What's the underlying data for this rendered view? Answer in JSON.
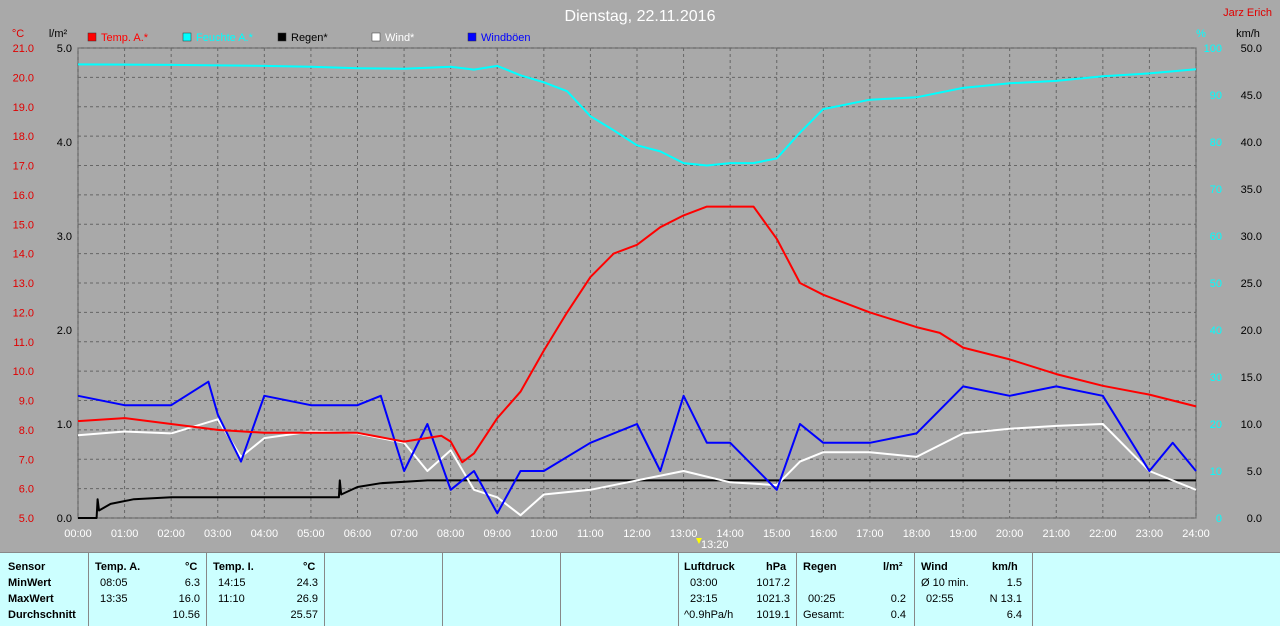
{
  "chart_data": {
    "type": "line",
    "title": "Dienstag, 22.11.2016",
    "author": "Jarz Erich",
    "x": {
      "min": 0,
      "max": 24,
      "ticks": [
        "00:00",
        "01:00",
        "02:00",
        "03:00",
        "04:00",
        "05:00",
        "06:00",
        "07:00",
        "08:00",
        "09:00",
        "10:00",
        "11:00",
        "12:00",
        "13:00",
        "14:00",
        "15:00",
        "16:00",
        "17:00",
        "18:00",
        "19:00",
        "20:00",
        "21:00",
        "22:00",
        "23:00",
        "24:00"
      ]
    },
    "axes": {
      "temp": {
        "unit": "°C",
        "min": 5,
        "max": 21,
        "ticks": [
          "21.0",
          "20.0",
          "19.0",
          "18.0",
          "17.0",
          "16.0",
          "15.0",
          "14.0",
          "13.0",
          "12.0",
          "11.0",
          "10.0",
          "9.0",
          "8.0",
          "7.0",
          "6.0",
          "5.0"
        ],
        "color": "#e00000"
      },
      "rain": {
        "unit": "l/m²",
        "min": 0,
        "max": 5,
        "ticks": [
          "5.0",
          "4.0",
          "3.0",
          "2.0",
          "1.0",
          "0.0"
        ],
        "color": "#000000"
      },
      "humidity": {
        "unit": "%",
        "min": 0,
        "max": 100,
        "ticks": [
          "100",
          "90",
          "80",
          "70",
          "60",
          "50",
          "40",
          "30",
          "20",
          "10",
          "0"
        ],
        "color": "#00ffff"
      },
      "wind": {
        "unit": "km/h",
        "min": 0,
        "max": 50,
        "ticks": [
          "50.0",
          "45.0",
          "40.0",
          "35.0",
          "30.0",
          "25.0",
          "20.0",
          "15.0",
          "10.0",
          "5.0",
          "0.0"
        ],
        "color": "#000000"
      }
    },
    "legend": [
      {
        "name": "Temp. A.*",
        "color": "#ff0000"
      },
      {
        "name": "Feuchte A.*",
        "color": "#00ffff"
      },
      {
        "name": "Regen*",
        "color": "#000000"
      },
      {
        "name": "Wind*",
        "color": "#ffffff"
      },
      {
        "name": "Windböen",
        "color": "#0000ff"
      }
    ],
    "annotation": {
      "label": "13:20",
      "x": 13.33
    },
    "series": [
      {
        "name": "Temp. A.*",
        "axis": "temp",
        "color": "#ff0000",
        "points": [
          [
            0,
            8.3
          ],
          [
            1,
            8.4
          ],
          [
            2,
            8.2
          ],
          [
            3,
            8.0
          ],
          [
            4,
            7.9
          ],
          [
            5,
            7.9
          ],
          [
            6,
            7.9
          ],
          [
            7,
            7.6
          ],
          [
            7.8,
            7.8
          ],
          [
            8,
            7.6
          ],
          [
            8.25,
            6.9
          ],
          [
            8.5,
            7.2
          ],
          [
            9,
            8.4
          ],
          [
            9.5,
            9.3
          ],
          [
            10,
            10.7
          ],
          [
            10.5,
            12.0
          ],
          [
            11,
            13.2
          ],
          [
            11.5,
            14.0
          ],
          [
            12,
            14.3
          ],
          [
            12.5,
            14.9
          ],
          [
            13,
            15.3
          ],
          [
            13.5,
            15.6
          ],
          [
            14,
            15.6
          ],
          [
            14.5,
            15.6
          ],
          [
            15,
            14.5
          ],
          [
            15.5,
            13.0
          ],
          [
            16,
            12.6
          ],
          [
            17,
            12.0
          ],
          [
            18,
            11.5
          ],
          [
            18.5,
            11.3
          ],
          [
            19,
            10.8
          ],
          [
            20,
            10.4
          ],
          [
            21,
            9.9
          ],
          [
            22,
            9.5
          ],
          [
            23,
            9.2
          ],
          [
            24,
            8.8
          ]
        ]
      },
      {
        "name": "Feuchte A.*",
        "axis": "humidity",
        "color": "#00ffff",
        "points": [
          [
            0,
            96.5
          ],
          [
            2,
            96.4
          ],
          [
            4,
            96.2
          ],
          [
            5,
            96.0
          ],
          [
            6,
            95.7
          ],
          [
            7,
            95.6
          ],
          [
            8,
            96.0
          ],
          [
            8.5,
            95.4
          ],
          [
            9,
            96.2
          ],
          [
            9.5,
            94.2
          ],
          [
            10,
            92.7
          ],
          [
            10.5,
            90.8
          ],
          [
            11,
            85.5
          ],
          [
            11.5,
            82.5
          ],
          [
            12,
            79.3
          ],
          [
            12.5,
            78.0
          ],
          [
            13,
            75.5
          ],
          [
            13.5,
            75.0
          ],
          [
            14,
            75.5
          ],
          [
            14.5,
            75.5
          ],
          [
            15,
            76.5
          ],
          [
            15.5,
            82.0
          ],
          [
            16,
            87.0
          ],
          [
            17,
            89.0
          ],
          [
            18,
            89.5
          ],
          [
            19,
            91.5
          ],
          [
            20,
            92.5
          ],
          [
            21,
            93.0
          ],
          [
            22,
            94.0
          ],
          [
            23,
            94.6
          ],
          [
            24,
            95.5
          ]
        ]
      },
      {
        "name": "Regen*",
        "axis": "rain",
        "color": "#000000",
        "points": [
          [
            0,
            0
          ],
          [
            0.4,
            0
          ],
          [
            0.42,
            0.2
          ],
          [
            0.45,
            0.08
          ],
          [
            0.7,
            0.15
          ],
          [
            1.2,
            0.2
          ],
          [
            2,
            0.22
          ],
          [
            3,
            0.22
          ],
          [
            5.6,
            0.22
          ],
          [
            5.62,
            0.4
          ],
          [
            5.65,
            0.25
          ],
          [
            6,
            0.33
          ],
          [
            6.5,
            0.37
          ],
          [
            7.5,
            0.4
          ],
          [
            24,
            0.4
          ]
        ]
      },
      {
        "name": "Wind*",
        "axis": "wind",
        "color": "#ffffff",
        "points": [
          [
            0,
            8.8
          ],
          [
            1,
            9.2
          ],
          [
            2,
            9.0
          ],
          [
            3,
            10.5
          ],
          [
            3.5,
            6.5
          ],
          [
            4,
            8.5
          ],
          [
            5,
            9.2
          ],
          [
            6,
            9.0
          ],
          [
            7,
            8.0
          ],
          [
            7.5,
            5.0
          ],
          [
            8,
            7.2
          ],
          [
            8.5,
            3.0
          ],
          [
            9,
            2.2
          ],
          [
            9.5,
            0.3
          ],
          [
            10,
            2.5
          ],
          [
            11,
            3.0
          ],
          [
            12,
            4.0
          ],
          [
            13,
            5.0
          ],
          [
            14,
            3.8
          ],
          [
            15,
            3.5
          ],
          [
            15.5,
            6.0
          ],
          [
            16,
            7.0
          ],
          [
            17,
            7.0
          ],
          [
            18,
            6.5
          ],
          [
            19,
            9.0
          ],
          [
            20,
            9.5
          ],
          [
            21,
            9.8
          ],
          [
            22,
            10.0
          ],
          [
            23,
            5.0
          ],
          [
            24,
            3.0
          ]
        ]
      },
      {
        "name": "Windböen",
        "axis": "wind",
        "color": "#0000ff",
        "points": [
          [
            0,
            13
          ],
          [
            1,
            12
          ],
          [
            2,
            12
          ],
          [
            2.8,
            14.5
          ],
          [
            3,
            11
          ],
          [
            3.5,
            6
          ],
          [
            4,
            13
          ],
          [
            5,
            12
          ],
          [
            6,
            12
          ],
          [
            6.5,
            13
          ],
          [
            7,
            5
          ],
          [
            7.5,
            10
          ],
          [
            8,
            3
          ],
          [
            8.5,
            5
          ],
          [
            9,
            0.5
          ],
          [
            9.5,
            5
          ],
          [
            10,
            5
          ],
          [
            11,
            8
          ],
          [
            12,
            10
          ],
          [
            12.5,
            5
          ],
          [
            13,
            13
          ],
          [
            13.5,
            8
          ],
          [
            14,
            8
          ],
          [
            15,
            3
          ],
          [
            15.5,
            10
          ],
          [
            16,
            8
          ],
          [
            17,
            8
          ],
          [
            18,
            9
          ],
          [
            19,
            14
          ],
          [
            20,
            13
          ],
          [
            21,
            14
          ],
          [
            22,
            13
          ],
          [
            23,
            5
          ],
          [
            23.5,
            8
          ],
          [
            24,
            5
          ]
        ]
      }
    ]
  },
  "stats": {
    "sensor_header": "Sensor",
    "row_labels": [
      "MinWert",
      "MaxWert",
      "Durchschnitt"
    ],
    "temp_a": {
      "title": "Temp. A.",
      "unit": "°C",
      "min_time": "08:05",
      "min_val": "6.3",
      "max_time": "13:35",
      "max_val": "16.0",
      "avg": "10.56"
    },
    "temp_i": {
      "title": "Temp. I.",
      "unit": "°C",
      "min_time": "14:15",
      "min_val": "24.3",
      "max_time": "11:10",
      "max_val": "26.9",
      "avg": "25.57"
    },
    "pressure": {
      "title": "Luftdruck",
      "unit": "hPa",
      "min_time": "03:00",
      "min_val": "1017.2",
      "max_time": "23:15",
      "max_val": "1021.3",
      "trend_label": "^0.9hPa/h",
      "trend_val": "1019.1"
    },
    "rain": {
      "title": "Regen",
      "unit": "l/m²",
      "max_time": "00:25",
      "max_val": "0.2",
      "total_label": "Gesamt:",
      "total_val": "0.4"
    },
    "wind": {
      "title": "Wind",
      "unit": "km/h",
      "avg_label": "Ø 10 min.",
      "avg_val": "1.5",
      "gust_time": "02:55",
      "gust_val": "N 13.1",
      "daily_avg": "6.4"
    }
  }
}
